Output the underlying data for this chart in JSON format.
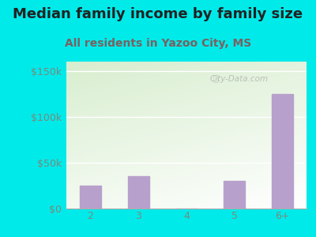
{
  "title": "Median family income by family size",
  "subtitle": "All residents in Yazoo City, MS",
  "categories": [
    "2",
    "3",
    "4",
    "5",
    "6+"
  ],
  "values": [
    25000,
    35000,
    0,
    30000,
    125000
  ],
  "bar_color": "#b8a0cc",
  "outer_bg_color": "#00eaea",
  "plot_bg_top_left": "#d8eecf",
  "plot_bg_bottom_right": "#ffffff",
  "title_color": "#222222",
  "subtitle_color": "#7a6060",
  "tick_color": "#7a8a7a",
  "ytick_labels": [
    "$0",
    "$50k",
    "$100k",
    "$150k"
  ],
  "ytick_values": [
    0,
    50000,
    100000,
    150000
  ],
  "ylim": [
    0,
    160000
  ],
  "title_fontsize": 13,
  "subtitle_fontsize": 10,
  "tick_fontsize": 9,
  "watermark": "City-Data.com"
}
